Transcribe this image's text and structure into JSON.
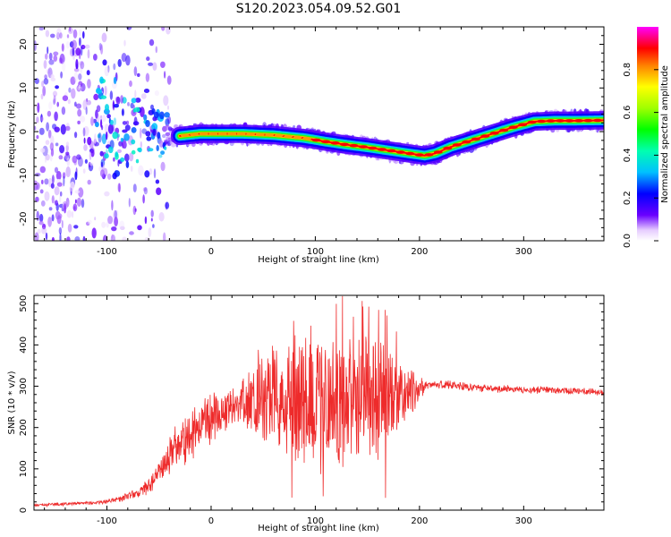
{
  "title": "S120.2023.054.09.52.G01",
  "colors": {
    "snr_line": "#ee2b2b",
    "frame": "#000000",
    "background": "#ffffff"
  },
  "chart_data": [
    {
      "type": "heatmap",
      "name_hint": "spectrogram",
      "xlabel": "Height of straight line (km)",
      "ylabel": "Frequency (Hz)",
      "xlim": [
        -170,
        377
      ],
      "ylim": [
        -25,
        24
      ],
      "x_ticks": [
        -100,
        0,
        100,
        200,
        300
      ],
      "x_tick_labels": [
        "-100",
        "0",
        "100",
        "200",
        "300"
      ],
      "y_ticks": [
        -20,
        -10,
        0,
        10,
        20
      ],
      "y_tick_labels": [
        "-20",
        "-10",
        "0",
        "10",
        "20"
      ],
      "colorbar": {
        "label": "Normalized spectral amplitude",
        "range": [
          0,
          1
        ],
        "ticks": [
          0.0,
          0.2,
          0.4,
          0.6,
          0.8
        ],
        "tick_labels": [
          "0.0",
          "0.2",
          "0.4",
          "0.6",
          "0.8"
        ],
        "colormap": "gist_ncar-like (purple-blue-cyan-green-yellow-red-magenta)"
      },
      "ridge": {
        "description": "dominant frequency vs height",
        "x": [
          -120,
          -80,
          -60,
          -45,
          -30,
          -10,
          0,
          30,
          60,
          90,
          110,
          130,
          150,
          170,
          190,
          205,
          215,
          230,
          250,
          270,
          290,
          310,
          330,
          350,
          377
        ],
        "y": [
          0,
          0.5,
          0.5,
          -1,
          -1,
          -0.5,
          -0.5,
          -0.5,
          -0.8,
          -1.5,
          -2.3,
          -3,
          -3.6,
          -4.3,
          -5,
          -5.5,
          -5,
          -3.5,
          -2,
          -0.5,
          1,
          2.3,
          2.5,
          2.5,
          2.6
        ]
      },
      "noise_region": {
        "x_from": -170,
        "x_to": -40,
        "description": "scattered broadband noise"
      },
      "grid": false
    },
    {
      "type": "line",
      "name_hint": "snr",
      "xlabel": "Height of straight line (km)",
      "ylabel": "SNR (10 * v/v)",
      "xlim": [
        -170,
        377
      ],
      "ylim": [
        0,
        520
      ],
      "x_ticks": [
        -100,
        0,
        100,
        200,
        300
      ],
      "x_tick_labels": [
        "-100",
        "0",
        "100",
        "200",
        "300"
      ],
      "y_ticks": [
        0,
        100,
        200,
        300,
        400,
        500
      ],
      "y_tick_labels": [
        "0",
        "100",
        "200",
        "300",
        "400",
        "500"
      ],
      "envelope": {
        "x": [
          -170,
          -110,
          -90,
          -70,
          -55,
          -45,
          -35,
          -20,
          -10,
          0,
          10,
          20,
          40,
          60,
          80,
          100,
          120,
          140,
          160,
          180,
          195,
          205,
          220,
          260,
          300,
          340,
          377
        ],
        "mean": [
          12,
          18,
          25,
          40,
          70,
          110,
          150,
          180,
          200,
          220,
          240,
          255,
          265,
          270,
          270,
          268,
          268,
          270,
          270,
          275,
          285,
          300,
          305,
          295,
          292,
          290,
          285
        ],
        "spread": [
          4,
          5,
          8,
          15,
          25,
          45,
          60,
          70,
          80,
          80,
          70,
          60,
          90,
          150,
          200,
          200,
          190,
          200,
          180,
          110,
          60,
          15,
          12,
          10,
          10,
          10,
          10
        ],
        "peak_max": 518,
        "min_value": 0
      },
      "grid": false
    }
  ]
}
